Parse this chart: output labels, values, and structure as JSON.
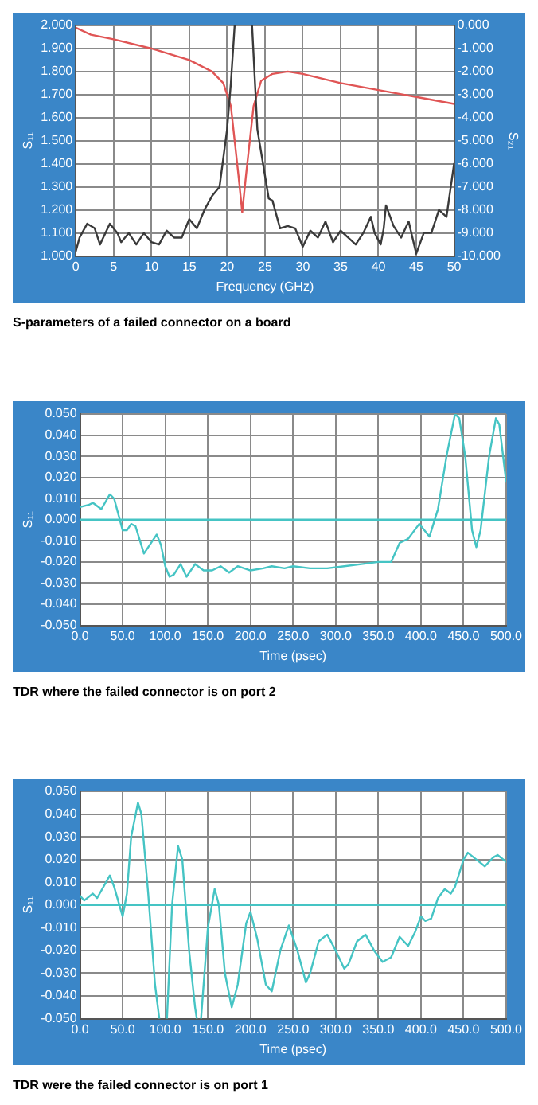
{
  "chart_data": [
    {
      "type": "line",
      "title": "S-parameters of a failed connector on a board",
      "xlabel": "Frequency (GHz)",
      "ylabel": "S₁₁",
      "y2label": "S₂₁",
      "grid": true,
      "marker": "none",
      "line_style": "solid",
      "xlim": [
        0,
        50
      ],
      "xticks": [
        0,
        5,
        10,
        15,
        20,
        25,
        30,
        35,
        40,
        45,
        50
      ],
      "ylim": [
        1,
        2
      ],
      "yticks": [
        {
          "value": 1,
          "label": "1.000"
        },
        {
          "value": 1.1,
          "label": "1.100"
        },
        {
          "value": 1.2,
          "label": "1.200"
        },
        {
          "value": 1.3,
          "label": "1.300"
        },
        {
          "value": 1.4,
          "label": "1.400"
        },
        {
          "value": 1.5,
          "label": "1.500"
        },
        {
          "value": 1.6,
          "label": "1.600"
        },
        {
          "value": 1.7,
          "label": "1.700"
        },
        {
          "value": 1.8,
          "label": "1.800"
        },
        {
          "value": 1.9,
          "label": "1.900"
        },
        {
          "value": 2,
          "label": "2.000"
        }
      ],
      "y2lim": [
        -10,
        0
      ],
      "y2ticks": [
        {
          "value": 0,
          "label": "0.000"
        },
        {
          "value": -1,
          "label": "-1.000"
        },
        {
          "value": -2,
          "label": "-2.000"
        },
        {
          "value": -3,
          "label": "-3.000"
        },
        {
          "value": -4,
          "label": "-4.000"
        },
        {
          "value": -5,
          "label": "-5.000"
        },
        {
          "value": -6,
          "label": "-6.000"
        },
        {
          "value": -7,
          "label": "-7.000"
        },
        {
          "value": -8,
          "label": "-8.000"
        },
        {
          "value": -9,
          "label": "-9.000"
        },
        {
          "value": -10,
          "label": "-10.000"
        }
      ],
      "series": [
        {
          "color": "#3a3a3a",
          "x": [
            0,
            0.5,
            1.5,
            2.5,
            3.2,
            4.5,
            5.5,
            6,
            7,
            8,
            9,
            10,
            11,
            12,
            13,
            14,
            15,
            16,
            17,
            18,
            19,
            20,
            20.5,
            21,
            21.5,
            23,
            23.3,
            24,
            25,
            25.5,
            26,
            27,
            28,
            29,
            30,
            31,
            32,
            33,
            34,
            35,
            36,
            37,
            38,
            39,
            39.5,
            40.3,
            40.7,
            41,
            42,
            43,
            44,
            45,
            46,
            47,
            48,
            49,
            50
          ],
          "values": [
            1.02,
            1.08,
            1.14,
            1.12,
            1.05,
            1.14,
            1.1,
            1.06,
            1.1,
            1.05,
            1.1,
            1.06,
            1.05,
            1.11,
            1.08,
            1.08,
            1.16,
            1.12,
            1.2,
            1.26,
            1.3,
            1.55,
            1.75,
            2,
            null,
            null,
            2,
            1.55,
            1.35,
            1.25,
            1.24,
            1.12,
            1.13,
            1.12,
            1.04,
            1.11,
            1.08,
            1.15,
            1.06,
            1.11,
            1.08,
            1.05,
            1.1,
            1.17,
            1.1,
            1.05,
            1.12,
            1.22,
            1.13,
            1.08,
            1.15,
            1.01,
            1.1,
            1.1,
            1.2,
            1.17,
            1.4
          ]
        },
        {
          "color": "#e05555",
          "axis": "y2",
          "x": [
            0,
            2,
            5,
            10,
            15,
            18,
            19.5,
            20.5,
            21.5,
            22,
            22.5,
            23.5,
            24.5,
            26,
            28,
            30,
            35,
            40,
            45,
            50
          ],
          "values": [
            -0.1,
            -0.4,
            -0.6,
            -1,
            -1.5,
            -2,
            -2.5,
            -3.5,
            -6.5,
            -8.1,
            -6.5,
            -3.5,
            -2.4,
            -2.1,
            -2,
            -2.1,
            -2.5,
            -2.8,
            -3.1,
            -3.4
          ]
        }
      ]
    },
    {
      "type": "line",
      "title": "TDR where the failed connector is on port 2",
      "xlabel": "Time (psec)",
      "ylabel": "S₁₁",
      "grid": true,
      "marker": "none",
      "line_style": "solid",
      "color": "#45c4c4",
      "xlim": [
        0,
        500
      ],
      "xticks": [
        {
          "value": 0,
          "label": "0.0"
        },
        {
          "value": 50,
          "label": "50.0"
        },
        {
          "value": 100,
          "label": "100.0"
        },
        {
          "value": 150,
          "label": "150.0"
        },
        {
          "value": 200,
          "label": "200.0"
        },
        {
          "value": 250,
          "label": "250.0"
        },
        {
          "value": 300,
          "label": "300.0"
        },
        {
          "value": 350,
          "label": "350.0"
        },
        {
          "value": 400,
          "label": "400.0"
        },
        {
          "value": 450,
          "label": "450.0"
        },
        {
          "value": 500,
          "label": "500.0"
        }
      ],
      "ylim": [
        -0.05,
        0.05
      ],
      "yticks": [
        {
          "value": 0.05,
          "label": "0.050"
        },
        {
          "value": 0.04,
          "label": "0.040"
        },
        {
          "value": 0.03,
          "label": "0.030"
        },
        {
          "value": 0.02,
          "label": "0.020"
        },
        {
          "value": 0.01,
          "label": "0.010"
        },
        {
          "value": 0,
          "label": "0.000"
        },
        {
          "value": -0.01,
          "label": "-0.010"
        },
        {
          "value": -0.02,
          "label": "-0.020"
        },
        {
          "value": -0.03,
          "label": "-0.030"
        },
        {
          "value": -0.04,
          "label": "-0.040"
        },
        {
          "value": -0.05,
          "label": "-0.050"
        }
      ],
      "ref_lines": [
        {
          "axis": "y",
          "value": 0,
          "color": "#45c4c4"
        }
      ],
      "x": [
        0,
        10,
        15,
        25,
        35,
        40,
        50,
        55,
        60,
        65,
        75,
        85,
        90,
        95,
        100,
        105,
        110,
        118,
        125,
        135,
        145,
        155,
        165,
        175,
        185,
        200,
        215,
        225,
        240,
        250,
        270,
        290,
        310,
        330,
        350,
        365,
        375,
        385,
        398,
        410,
        420,
        430,
        440,
        445,
        452,
        460,
        465,
        470,
        480,
        488,
        492,
        500
      ],
      "values": [
        0.006,
        0.007,
        0.008,
        0.005,
        0.012,
        0.01,
        -0.005,
        -0.005,
        -0.002,
        -0.003,
        -0.016,
        -0.01,
        -0.007,
        -0.012,
        -0.022,
        -0.027,
        -0.026,
        -0.021,
        -0.027,
        -0.021,
        -0.024,
        -0.024,
        -0.022,
        -0.025,
        -0.022,
        -0.024,
        -0.023,
        -0.022,
        -0.023,
        -0.022,
        -0.023,
        -0.023,
        -0.022,
        -0.021,
        -0.02,
        -0.02,
        -0.011,
        -0.009,
        -0.002,
        -0.008,
        0.005,
        0.03,
        0.05,
        0.048,
        0.03,
        -0.005,
        -0.013,
        -0.005,
        0.03,
        0.048,
        0.045,
        0.018
      ]
    },
    {
      "type": "line",
      "title": "TDR were the failed connector is on port 1",
      "xlabel": "Time (psec)",
      "ylabel": "S₁₁",
      "grid": true,
      "marker": "none",
      "line_style": "solid",
      "color": "#45c4c4",
      "xlim": [
        0,
        500
      ],
      "xticks": [
        {
          "value": 0,
          "label": "0.0"
        },
        {
          "value": 50,
          "label": "50.0"
        },
        {
          "value": 100,
          "label": "100.0"
        },
        {
          "value": 150,
          "label": "150.0"
        },
        {
          "value": 200,
          "label": "200.0"
        },
        {
          "value": 250,
          "label": "250.0"
        },
        {
          "value": 300,
          "label": "300.0"
        },
        {
          "value": 350,
          "label": "350.0"
        },
        {
          "value": 400,
          "label": "400.0"
        },
        {
          "value": 450,
          "label": "450.0"
        },
        {
          "value": 500,
          "label": "500.0"
        }
      ],
      "ylim": [
        -0.05,
        0.05
      ],
      "yticks": [
        {
          "value": 0.05,
          "label": "0.050"
        },
        {
          "value": 0.04,
          "label": "0.040"
        },
        {
          "value": 0.03,
          "label": "0.030"
        },
        {
          "value": 0.02,
          "label": "0.020"
        },
        {
          "value": 0.01,
          "label": "0.010"
        },
        {
          "value": 0,
          "label": "0.000"
        },
        {
          "value": -0.01,
          "label": "-0.010"
        },
        {
          "value": -0.02,
          "label": "-0.020"
        },
        {
          "value": -0.03,
          "label": "-0.030"
        },
        {
          "value": -0.04,
          "label": "-0.040"
        },
        {
          "value": -0.05,
          "label": "-0.050"
        }
      ],
      "ref_lines": [
        {
          "axis": "y",
          "value": 0,
          "color": "#45c4c4"
        }
      ],
      "x": [
        0,
        5,
        15,
        20,
        35,
        40,
        50,
        55,
        60,
        68,
        72,
        80,
        88,
        93,
        97,
        102,
        108,
        115,
        120,
        128,
        135,
        137,
        140,
        142,
        150,
        158,
        163,
        170,
        178,
        185,
        195,
        200,
        208,
        218,
        225,
        235,
        245,
        255,
        265,
        270,
        280,
        290,
        300,
        310,
        315,
        325,
        335,
        345,
        355,
        365,
        375,
        385,
        393,
        400,
        405,
        412,
        420,
        428,
        435,
        440,
        450,
        455,
        465,
        475,
        485,
        490,
        500
      ],
      "values": [
        0.004,
        0.002,
        0.005,
        0.003,
        0.013,
        0.008,
        -0.005,
        0.005,
        0.03,
        0.045,
        0.04,
        0.005,
        -0.035,
        -0.05,
        null,
        -0.05,
        0,
        0.026,
        0.02,
        -0.02,
        -0.045,
        -0.05,
        null,
        -0.05,
        -0.01,
        0.007,
        0,
        -0.03,
        -0.045,
        -0.035,
        -0.008,
        -0.003,
        -0.015,
        -0.035,
        -0.038,
        -0.02,
        -0.009,
        -0.02,
        -0.034,
        -0.03,
        -0.016,
        -0.013,
        -0.02,
        -0.028,
        -0.026,
        -0.016,
        -0.013,
        -0.02,
        -0.025,
        -0.023,
        -0.014,
        -0.018,
        -0.012,
        -0.005,
        -0.007,
        -0.006,
        0.003,
        0.007,
        0.005,
        0.008,
        0.02,
        0.023,
        0.02,
        0.017,
        0.021,
        0.022,
        0.019
      ]
    }
  ]
}
